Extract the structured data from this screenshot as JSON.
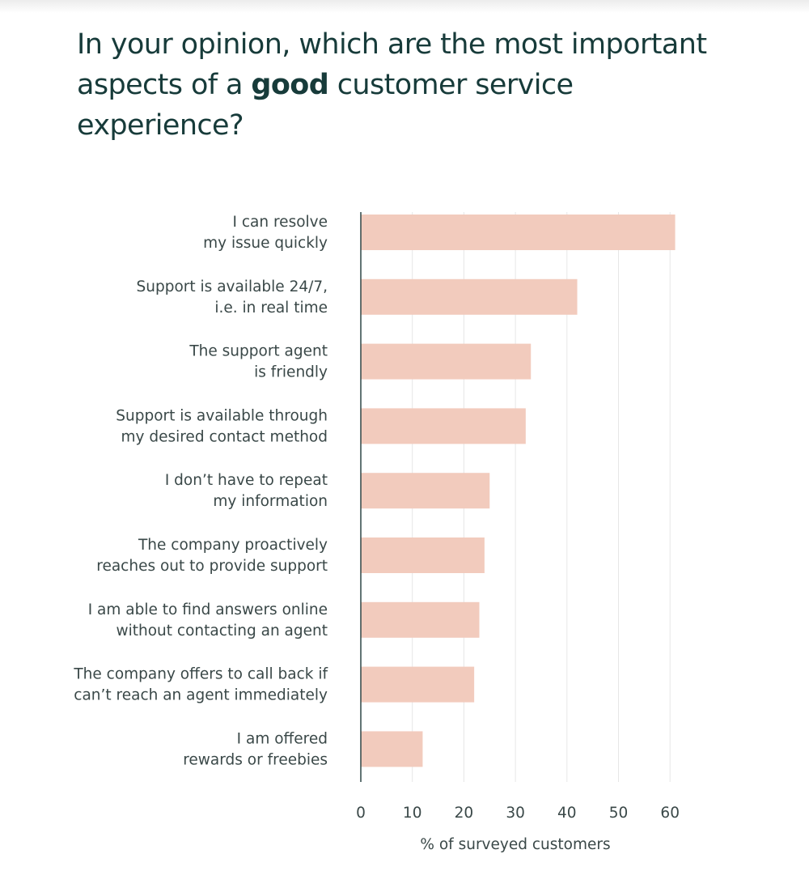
{
  "title": {
    "before": "In your opinion, which are the most important aspects of a ",
    "emphasis": "good",
    "after": " customer service experience?"
  },
  "colors": {
    "bar": "#f2cbbd",
    "axis": "#2f4646",
    "grid": "#e6e6e6",
    "text": "#3a4848",
    "title": "#173b3a"
  },
  "chart_data": {
    "type": "bar",
    "orientation": "horizontal",
    "title": "In your opinion, which are the most important aspects of a good customer service experience?",
    "xlabel": "% of surveyed customers",
    "ylabel": "",
    "xlim": [
      0,
      60
    ],
    "xticks": [
      0,
      10,
      20,
      30,
      40,
      50,
      60
    ],
    "grid": true,
    "categories": [
      [
        "I can resolve",
        "my issue quickly"
      ],
      [
        "Support is available 24/7,",
        "i.e. in real time"
      ],
      [
        "The support agent",
        "is friendly"
      ],
      [
        "Support is available through",
        "my desired contact method"
      ],
      [
        "I don’t have to repeat",
        "my information"
      ],
      [
        "The company proactively",
        "reaches out to provide support"
      ],
      [
        "I am able to find answers online",
        "without contacting an agent"
      ],
      [
        "The company offers to call back if",
        "can’t reach an agent immediately"
      ],
      [
        "I am offered",
        "rewards or freebies"
      ]
    ],
    "values": [
      61,
      42,
      33,
      32,
      25,
      24,
      23,
      22,
      12
    ]
  }
}
